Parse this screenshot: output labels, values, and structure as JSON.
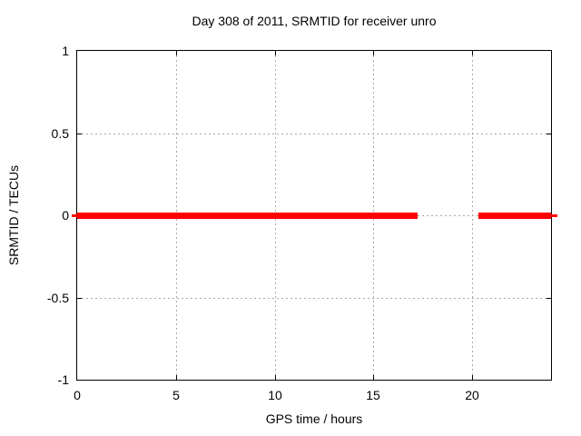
{
  "figure": {
    "background": "#ffffff",
    "text_color": "#000000",
    "border_color": "#000000"
  },
  "chart_data": {
    "type": "line",
    "title": "Day 308 of 2011, SRMTID for receiver unro",
    "xlabel": "GPS time / hours",
    "ylabel": "SRMTID / TECUs",
    "xlim": [
      0,
      24
    ],
    "ylim": [
      -1,
      1
    ],
    "x_ticks": [
      {
        "label": "0",
        "value": 0
      },
      {
        "label": "5",
        "value": 5
      },
      {
        "label": "10",
        "value": 10
      },
      {
        "label": "15",
        "value": 15
      },
      {
        "label": "20",
        "value": 20
      }
    ],
    "y_ticks": [
      {
        "label": "1",
        "value": 1
      },
      {
        "label": "0.5",
        "value": 0.5
      },
      {
        "label": "0",
        "value": 0
      },
      {
        "label": "-0.5",
        "value": -0.5
      },
      {
        "label": "-1",
        "value": -1
      }
    ],
    "grid": {
      "on": true,
      "style": "dotted",
      "color": "#a8a8a8",
      "x_values": [
        5,
        10,
        15,
        20
      ],
      "y_values": [
        -0.5,
        0,
        0.5
      ]
    },
    "legend": "none",
    "series": [
      {
        "name": "SRMTID",
        "color": "#ff0000",
        "constant_value": 0,
        "segments": [
          {
            "x_start": 0,
            "x_end": 17.25,
            "y": 0
          },
          {
            "x_start": 20.3,
            "x_end": 24,
            "y": 0
          }
        ]
      }
    ]
  }
}
